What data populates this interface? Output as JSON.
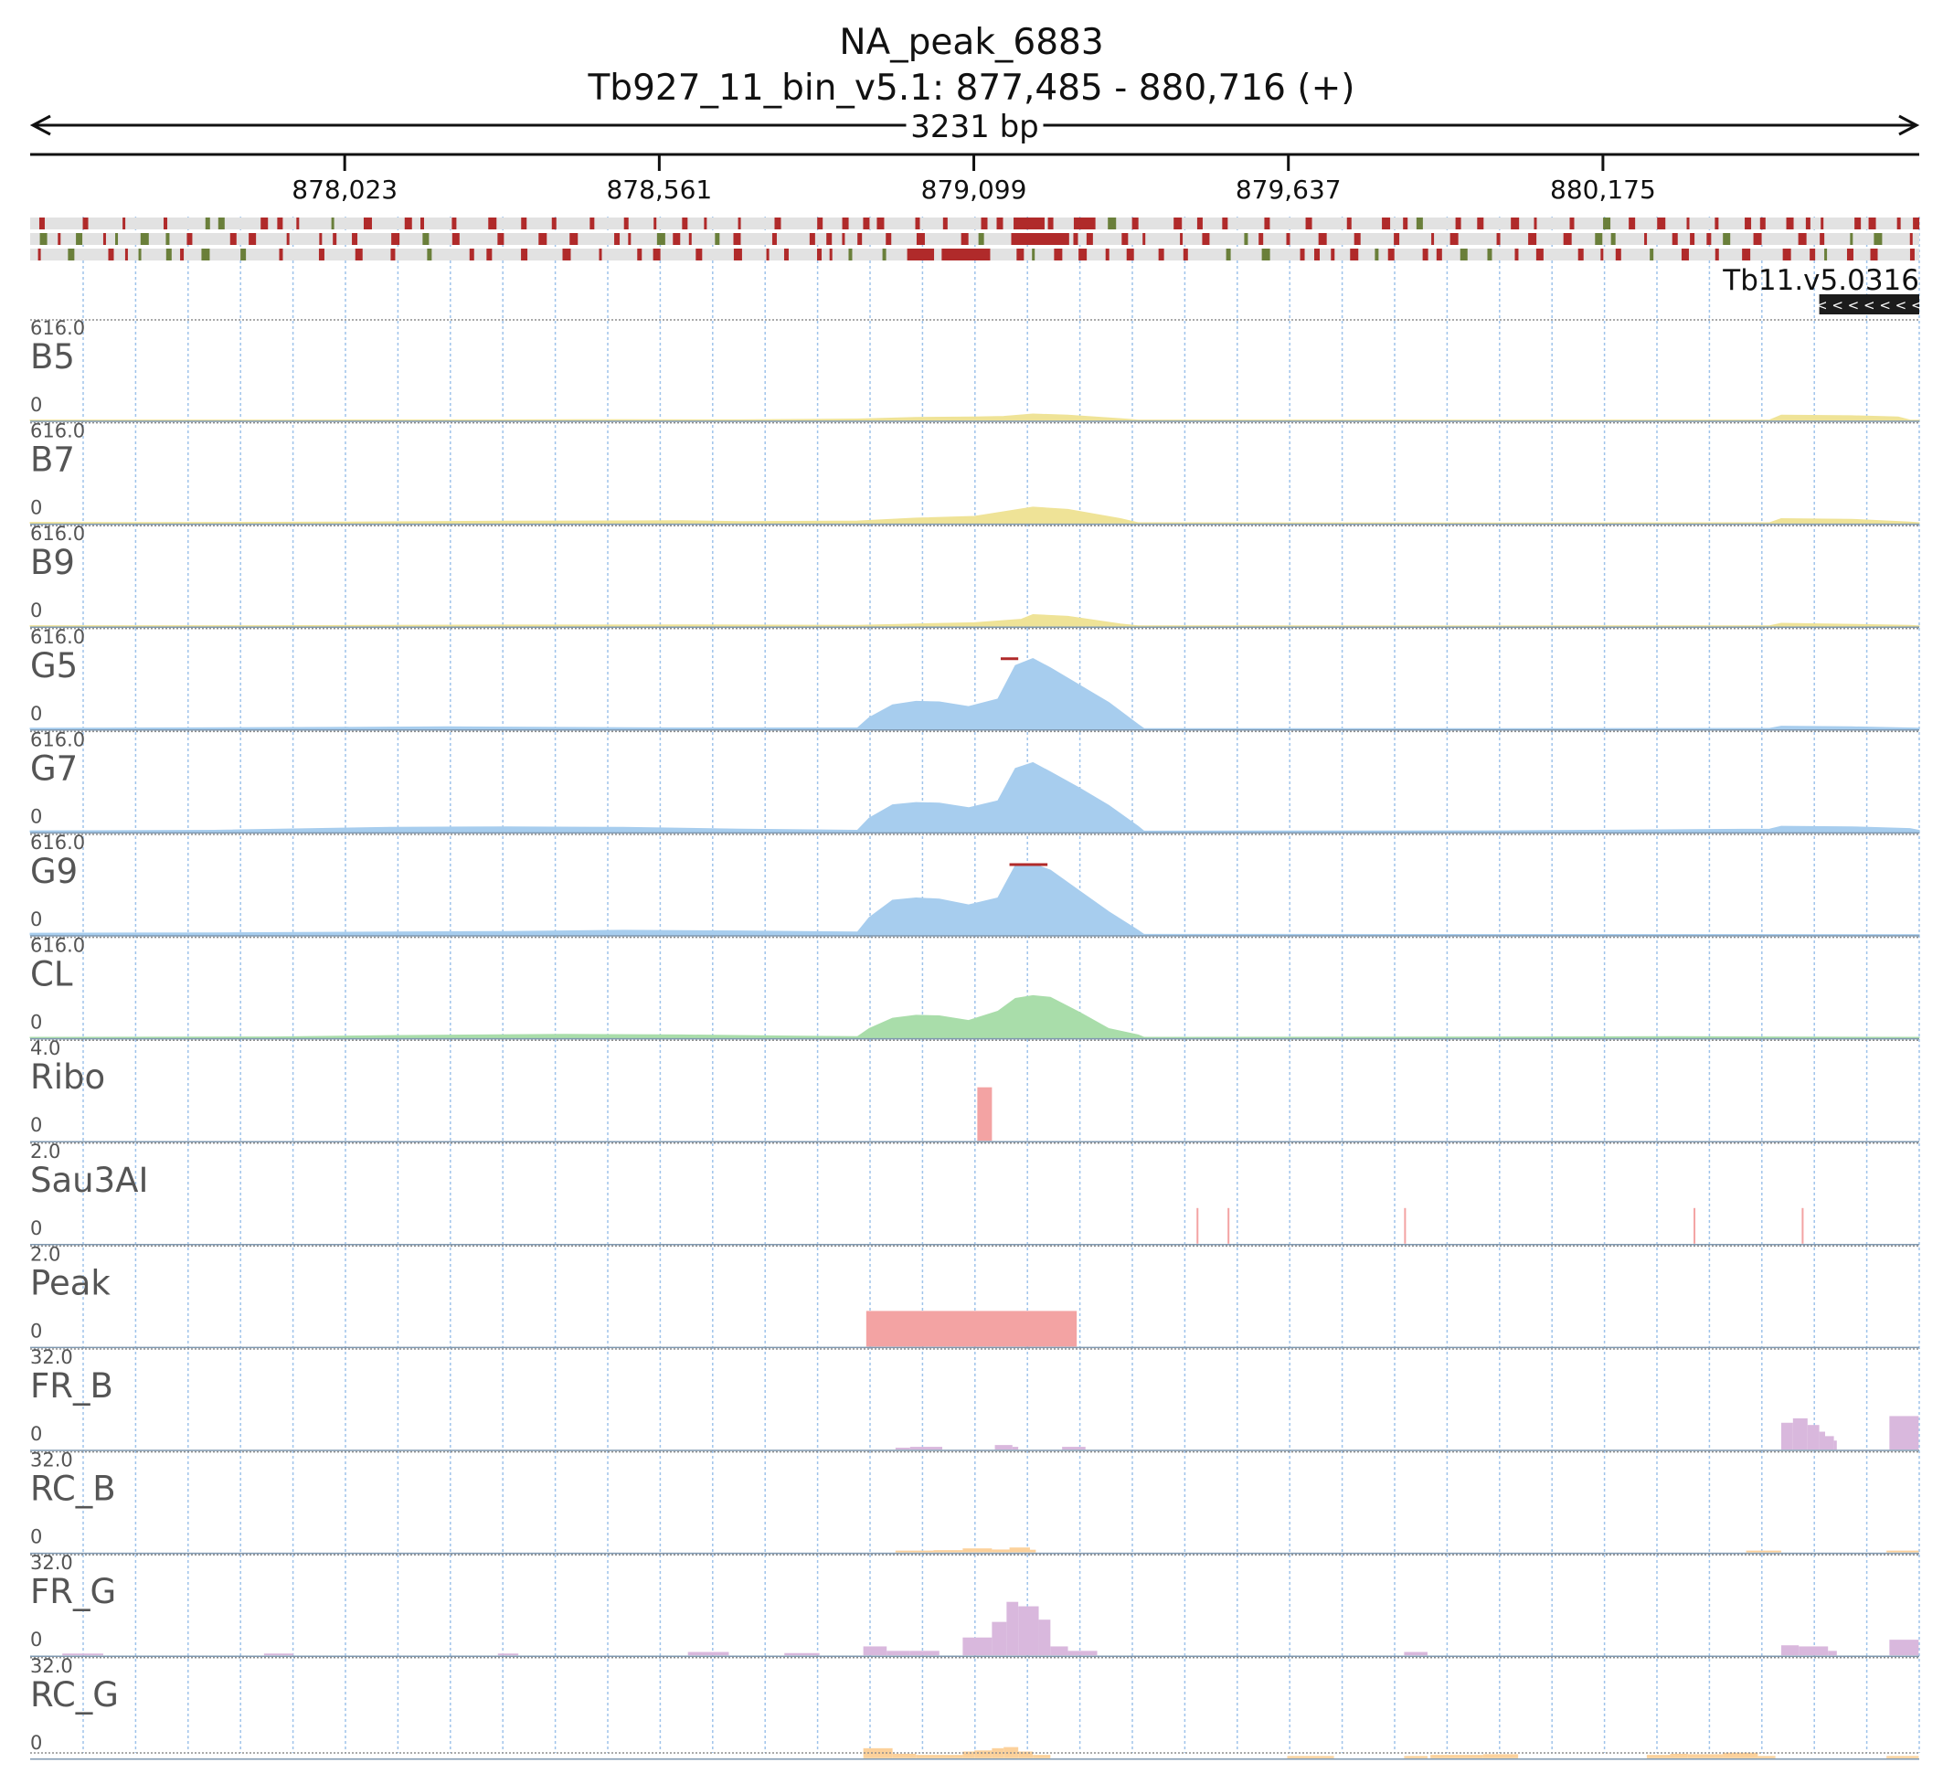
{
  "title": "NA_peak_6883",
  "subtitle": "Tb927_11_bin_v5.1: 877,485 - 880,716 (+)",
  "span_label": "3231 bp",
  "chart_data": {
    "type": "area",
    "genome_range": [
      877485,
      880716
    ],
    "ruler_ticks": [
      878023,
      878561,
      879099,
      879637,
      880175
    ],
    "ruler_tick_labels": [
      "878,023",
      "878,561",
      "879,099",
      "879,637",
      "880,175"
    ],
    "gene": {
      "label": "Tb11.v5.0316",
      "start": 880545,
      "end": 880716,
      "strand": "-",
      "arrows": "< < < < < < < < < < <"
    },
    "colors": {
      "yellow": "#efe397",
      "blue": "#a7cdee",
      "green": "#a9ddaa",
      "red": "#f3a3a3",
      "purple": "#d9b8dd",
      "orange": "#fcd19b",
      "frame_red": "#b02a2a",
      "frame_green": "#6a7f3a",
      "frame_bg": "#e2e2e2"
    },
    "tracks": [
      {
        "name": "B5",
        "max_label": "616.0",
        "min_label": "0",
        "kind": "area",
        "color": "yellow",
        "points": [
          [
            877485,
            3
          ],
          [
            877900,
            3
          ],
          [
            878200,
            4
          ],
          [
            878500,
            6
          ],
          [
            878700,
            5
          ],
          [
            878900,
            12
          ],
          [
            879000,
            25
          ],
          [
            879100,
            30
          ],
          [
            879150,
            35
          ],
          [
            879200,
            55
          ],
          [
            879260,
            45
          ],
          [
            879350,
            15
          ],
          [
            879380,
            3
          ],
          [
            880000,
            2
          ],
          [
            880460,
            3
          ],
          [
            880480,
            45
          ],
          [
            880600,
            40
          ],
          [
            880680,
            30
          ],
          [
            880700,
            3
          ],
          [
            880716,
            2
          ]
        ]
      },
      {
        "name": "B7",
        "max_label": "616.0",
        "min_label": "0",
        "kind": "area",
        "color": "yellow",
        "points": [
          [
            877485,
            8
          ],
          [
            877700,
            6
          ],
          [
            878000,
            10
          ],
          [
            878300,
            18
          ],
          [
            878600,
            22
          ],
          [
            878700,
            15
          ],
          [
            878900,
            20
          ],
          [
            879000,
            45
          ],
          [
            879100,
            60
          ],
          [
            879200,
            140
          ],
          [
            879260,
            120
          ],
          [
            879350,
            40
          ],
          [
            879380,
            5
          ],
          [
            880000,
            3
          ],
          [
            880460,
            5
          ],
          [
            880480,
            40
          ],
          [
            880600,
            35
          ],
          [
            880700,
            10
          ],
          [
            880716,
            5
          ]
        ]
      },
      {
        "name": "B9",
        "max_label": "616.0",
        "min_label": "0",
        "kind": "area",
        "color": "yellow",
        "points": [
          [
            877485,
            5
          ],
          [
            877900,
            5
          ],
          [
            878300,
            10
          ],
          [
            878600,
            12
          ],
          [
            878900,
            8
          ],
          [
            879000,
            20
          ],
          [
            879100,
            30
          ],
          [
            879180,
            60
          ],
          [
            879200,
            100
          ],
          [
            879260,
            85
          ],
          [
            879350,
            20
          ],
          [
            879380,
            4
          ],
          [
            880000,
            2
          ],
          [
            880460,
            4
          ],
          [
            880480,
            25
          ],
          [
            880700,
            8
          ],
          [
            880716,
            3
          ]
        ]
      },
      {
        "name": "G5",
        "max_label": "616.0",
        "min_label": "0",
        "kind": "area",
        "color": "blue",
        "overflow": [
          879145,
          879175
        ],
        "points": [
          [
            877485,
            8
          ],
          [
            877700,
            10
          ],
          [
            878000,
            15
          ],
          [
            878200,
            20
          ],
          [
            878600,
            10
          ],
          [
            878900,
            10
          ],
          [
            878920,
            100
          ],
          [
            878960,
            210
          ],
          [
            879000,
            240
          ],
          [
            879040,
            235
          ],
          [
            879090,
            195
          ],
          [
            879140,
            260
          ],
          [
            879170,
            550
          ],
          [
            879200,
            610
          ],
          [
            879230,
            530
          ],
          [
            879280,
            380
          ],
          [
            879330,
            230
          ],
          [
            879380,
            40
          ],
          [
            879390,
            5
          ],
          [
            880000,
            5
          ],
          [
            880460,
            6
          ],
          [
            880480,
            25
          ],
          [
            880600,
            20
          ],
          [
            880716,
            8
          ]
        ]
      },
      {
        "name": "G7",
        "max_label": "616.0",
        "min_label": "0",
        "kind": "area",
        "color": "blue",
        "points": [
          [
            877485,
            10
          ],
          [
            877800,
            15
          ],
          [
            878100,
            40
          ],
          [
            878300,
            45
          ],
          [
            878500,
            40
          ],
          [
            878700,
            25
          ],
          [
            878900,
            15
          ],
          [
            878920,
            120
          ],
          [
            878960,
            235
          ],
          [
            879000,
            255
          ],
          [
            879040,
            250
          ],
          [
            879090,
            210
          ],
          [
            879140,
            270
          ],
          [
            879170,
            550
          ],
          [
            879200,
            600
          ],
          [
            879230,
            520
          ],
          [
            879280,
            380
          ],
          [
            879330,
            230
          ],
          [
            879380,
            50
          ],
          [
            879390,
            8
          ],
          [
            880000,
            10
          ],
          [
            880460,
            25
          ],
          [
            880480,
            50
          ],
          [
            880600,
            45
          ],
          [
            880700,
            30
          ],
          [
            880716,
            15
          ]
        ]
      },
      {
        "name": "G9",
        "max_label": "616.0",
        "min_label": "0",
        "kind": "area",
        "color": "blue",
        "overflow": [
          879160,
          879225
        ],
        "points": [
          [
            877485,
            15
          ],
          [
            877800,
            18
          ],
          [
            878100,
            25
          ],
          [
            878300,
            30
          ],
          [
            878500,
            40
          ],
          [
            878700,
            35
          ],
          [
            878900,
            25
          ],
          [
            878920,
            150
          ],
          [
            878960,
            300
          ],
          [
            879000,
            320
          ],
          [
            879040,
            310
          ],
          [
            879090,
            260
          ],
          [
            879140,
            320
          ],
          [
            879170,
            600
          ],
          [
            879200,
            616
          ],
          [
            879230,
            560
          ],
          [
            879280,
            380
          ],
          [
            879330,
            200
          ],
          [
            879380,
            40
          ],
          [
            879390,
            5
          ],
          [
            880716,
            3
          ]
        ]
      },
      {
        "name": "CL",
        "max_label": "616.0",
        "min_label": "0",
        "kind": "area",
        "color": "green",
        "points": [
          [
            877485,
            5
          ],
          [
            877900,
            8
          ],
          [
            878100,
            20
          ],
          [
            878400,
            30
          ],
          [
            878600,
            25
          ],
          [
            878800,
            15
          ],
          [
            878900,
            10
          ],
          [
            878920,
            80
          ],
          [
            878960,
            170
          ],
          [
            879000,
            195
          ],
          [
            879040,
            190
          ],
          [
            879090,
            150
          ],
          [
            879140,
            230
          ],
          [
            879170,
            340
          ],
          [
            879200,
            365
          ],
          [
            879230,
            350
          ],
          [
            879280,
            220
          ],
          [
            879330,
            80
          ],
          [
            879380,
            25
          ],
          [
            879390,
            5
          ],
          [
            880000,
            8
          ],
          [
            880300,
            10
          ],
          [
            880716,
            5
          ]
        ]
      },
      {
        "name": "Ribo",
        "max_label": "4.0",
        "min_label": "0",
        "kind": "bars",
        "color": "red",
        "bars": [
          [
            879105,
            879130,
            3.0
          ]
        ]
      },
      {
        "name": "Sau3AI",
        "max_label": "2.0",
        "min_label": "0",
        "kind": "bars",
        "color": "red",
        "bars": [
          [
            879480,
            879483,
            1.0
          ],
          [
            879533,
            879536,
            1.0
          ],
          [
            879835,
            879838,
            1.0
          ],
          [
            880330,
            880333,
            1.0
          ],
          [
            880515,
            880518,
            1.0
          ]
        ]
      },
      {
        "name": "Peak",
        "max_label": "2.0",
        "min_label": "0",
        "kind": "bars",
        "color": "red",
        "bars": [
          [
            878915,
            879275,
            1.0
          ]
        ]
      },
      {
        "name": "FR_B",
        "max_label": "32.0",
        "min_label": "0",
        "kind": "bars",
        "color": "purple",
        "bars": [
          [
            878965,
            878990,
            0.8
          ],
          [
            878990,
            879045,
            1.2
          ],
          [
            879135,
            879165,
            2.0
          ],
          [
            879165,
            879175,
            1.2
          ],
          [
            879250,
            879290,
            1.2
          ],
          [
            880480,
            880500,
            12.0
          ],
          [
            880500,
            880525,
            14.0
          ],
          [
            880525,
            880545,
            11.0
          ],
          [
            880545,
            880555,
            8.0
          ],
          [
            880555,
            880570,
            6.0
          ],
          [
            880570,
            880575,
            4.0
          ],
          [
            880665,
            880715,
            15.0
          ]
        ]
      },
      {
        "name": "RC_B",
        "max_label": "32.0",
        "min_label": "0",
        "kind": "bars",
        "color": "orange",
        "bars": [
          [
            878965,
            879030,
            0.8
          ],
          [
            879030,
            879080,
            1.0
          ],
          [
            879080,
            879130,
            1.8
          ],
          [
            879130,
            879160,
            1.3
          ],
          [
            879160,
            879195,
            2.2
          ],
          [
            879195,
            879205,
            1.2
          ],
          [
            880420,
            880480,
            0.8
          ],
          [
            880660,
            880715,
            0.8
          ]
        ]
      },
      {
        "name": "FR_G",
        "max_label": "32.0",
        "min_label": "0",
        "kind": "bars",
        "color": "purple",
        "bars": [
          [
            877540,
            877610,
            0.8
          ],
          [
            877885,
            877935,
            0.8
          ],
          [
            878285,
            878320,
            0.8
          ],
          [
            878610,
            878680,
            1.5
          ],
          [
            878775,
            878835,
            1.0
          ],
          [
            878910,
            878950,
            4.0
          ],
          [
            878950,
            878990,
            2.0
          ],
          [
            878990,
            879040,
            2.0
          ],
          [
            879080,
            879130,
            8.0
          ],
          [
            879130,
            879155,
            15.0
          ],
          [
            879155,
            879175,
            24.0
          ],
          [
            879175,
            879210,
            22.0
          ],
          [
            879210,
            879230,
            16.0
          ],
          [
            879230,
            879260,
            4.0
          ],
          [
            879260,
            879310,
            2.0
          ],
          [
            879835,
            879875,
            1.5
          ],
          [
            880480,
            880510,
            4.5
          ],
          [
            880510,
            880560,
            4.0
          ],
          [
            880560,
            880575,
            2.0
          ],
          [
            880665,
            880715,
            7.0
          ]
        ]
      },
      {
        "name": "RC_G",
        "max_label": "32.0",
        "min_label": "0",
        "kind": "bars",
        "color": "orange",
        "bars": [
          [
            878910,
            878960,
            4.5
          ],
          [
            878960,
            879000,
            2.0
          ],
          [
            879000,
            879080,
            1.5
          ],
          [
            879080,
            879100,
            3.0
          ],
          [
            879100,
            879130,
            3.5
          ],
          [
            879130,
            879150,
            4.5
          ],
          [
            879150,
            879175,
            5.0
          ],
          [
            879175,
            879200,
            3.0
          ],
          [
            879200,
            879230,
            1.5
          ],
          [
            879635,
            879715,
            1.0
          ],
          [
            879835,
            879875,
            1.0
          ],
          [
            879880,
            879970,
            1.5
          ],
          [
            879970,
            880030,
            1.8
          ],
          [
            880250,
            880290,
            1.5
          ],
          [
            880290,
            880320,
            2.0
          ],
          [
            880320,
            880380,
            1.8
          ],
          [
            880380,
            880440,
            2.5
          ],
          [
            880440,
            880470,
            1.0
          ],
          [
            880660,
            880715,
            1.0
          ]
        ]
      }
    ]
  }
}
